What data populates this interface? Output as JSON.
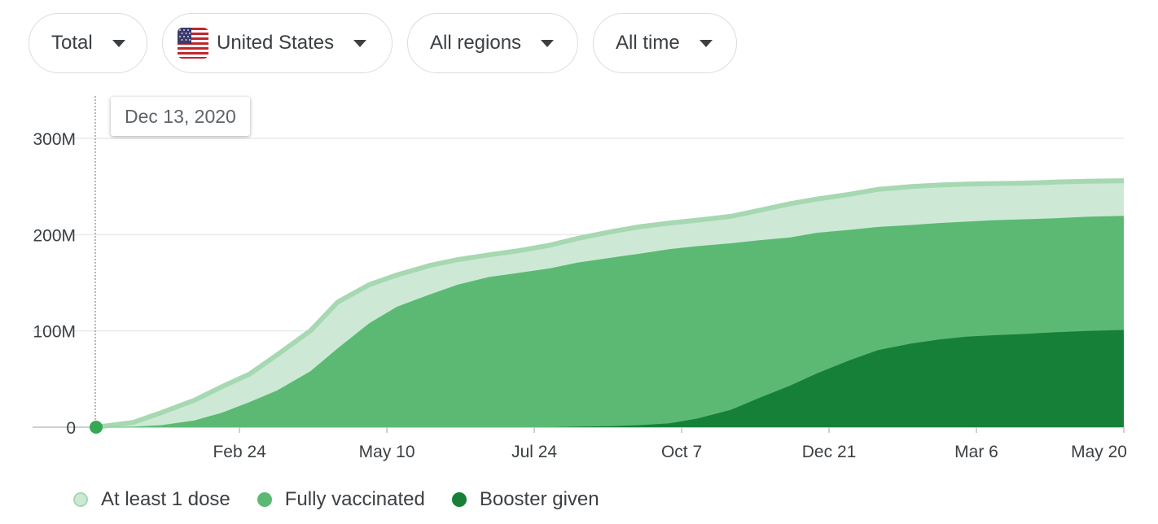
{
  "filters": {
    "metric": {
      "label": "Total"
    },
    "location": {
      "label": "United States",
      "flag": "us-flag-icon"
    },
    "region": {
      "label": "All regions"
    },
    "time": {
      "label": "All time"
    }
  },
  "tooltip": {
    "date": "Dec 13, 2020"
  },
  "colors": {
    "at_least_one_fill": "#cde9d6",
    "at_least_one_edge": "#a6d8b2",
    "fully_fill": "#5cb973",
    "booster_fill": "#168038",
    "marker": "#34a853",
    "grid": "#e8eaed"
  },
  "chart_data": {
    "type": "area",
    "title": "",
    "x_labels": [
      "Feb 24",
      "May 10",
      "Jul 24",
      "Oct 7",
      "Dec 21",
      "Mar 6",
      "May 20"
    ],
    "y_labels": [
      "0",
      "100M",
      "200M",
      "300M"
    ],
    "ylim": [
      0,
      300000000
    ],
    "grid": true,
    "legend_position": "bottom-left",
    "series": [
      {
        "name": "At least 1 dose",
        "points": [
          [
            "2020-12-13",
            0
          ],
          [
            "2021-01-01",
            5000000
          ],
          [
            "2021-01-15",
            15000000
          ],
          [
            "2021-02-01",
            28000000
          ],
          [
            "2021-02-15",
            42000000
          ],
          [
            "2021-03-01",
            55000000
          ],
          [
            "2021-03-15",
            75000000
          ],
          [
            "2021-04-01",
            100000000
          ],
          [
            "2021-04-15",
            130000000
          ],
          [
            "2021-05-01",
            148000000
          ],
          [
            "2021-05-15",
            158000000
          ],
          [
            "2021-06-01",
            168000000
          ],
          [
            "2021-06-15",
            174000000
          ],
          [
            "2021-07-01",
            179000000
          ],
          [
            "2021-07-15",
            183000000
          ],
          [
            "2021-08-01",
            189000000
          ],
          [
            "2021-08-15",
            196000000
          ],
          [
            "2021-09-01",
            203000000
          ],
          [
            "2021-09-15",
            208000000
          ],
          [
            "2021-10-01",
            212000000
          ],
          [
            "2021-10-15",
            215000000
          ],
          [
            "2021-11-01",
            219000000
          ],
          [
            "2021-11-15",
            225000000
          ],
          [
            "2021-12-01",
            232000000
          ],
          [
            "2021-12-15",
            237000000
          ],
          [
            "2022-01-01",
            242000000
          ],
          [
            "2022-01-15",
            247000000
          ],
          [
            "2022-02-01",
            250000000
          ],
          [
            "2022-02-15",
            251500000
          ],
          [
            "2022-03-01",
            252500000
          ],
          [
            "2022-03-15",
            253000000
          ],
          [
            "2022-04-01",
            253500000
          ],
          [
            "2022-04-15",
            254500000
          ],
          [
            "2022-05-01",
            255500000
          ],
          [
            "2022-05-20",
            256000000
          ]
        ]
      },
      {
        "name": "Fully vaccinated",
        "points": [
          [
            "2020-12-13",
            0
          ],
          [
            "2021-01-01",
            500000
          ],
          [
            "2021-01-15",
            2000000
          ],
          [
            "2021-02-01",
            7000000
          ],
          [
            "2021-02-15",
            15000000
          ],
          [
            "2021-03-01",
            26000000
          ],
          [
            "2021-03-15",
            38000000
          ],
          [
            "2021-04-01",
            58000000
          ],
          [
            "2021-04-15",
            82000000
          ],
          [
            "2021-05-01",
            108000000
          ],
          [
            "2021-05-15",
            125000000
          ],
          [
            "2021-06-01",
            138000000
          ],
          [
            "2021-06-15",
            148000000
          ],
          [
            "2021-07-01",
            156000000
          ],
          [
            "2021-07-15",
            160000000
          ],
          [
            "2021-08-01",
            165000000
          ],
          [
            "2021-08-15",
            171000000
          ],
          [
            "2021-09-01",
            176000000
          ],
          [
            "2021-09-15",
            180000000
          ],
          [
            "2021-10-01",
            185000000
          ],
          [
            "2021-10-15",
            188000000
          ],
          [
            "2021-11-01",
            191000000
          ],
          [
            "2021-11-15",
            194000000
          ],
          [
            "2021-12-01",
            197000000
          ],
          [
            "2021-12-15",
            202000000
          ],
          [
            "2022-01-01",
            205000000
          ],
          [
            "2022-01-15",
            208000000
          ],
          [
            "2022-02-01",
            210000000
          ],
          [
            "2022-02-15",
            212000000
          ],
          [
            "2022-03-01",
            213500000
          ],
          [
            "2022-03-15",
            215000000
          ],
          [
            "2022-04-01",
            216000000
          ],
          [
            "2022-04-15",
            217000000
          ],
          [
            "2022-05-01",
            218500000
          ],
          [
            "2022-05-20",
            219500000
          ]
        ]
      },
      {
        "name": "Booster given",
        "points": [
          [
            "2020-12-13",
            0
          ],
          [
            "2021-08-01",
            0
          ],
          [
            "2021-08-15",
            500000
          ],
          [
            "2021-09-01",
            1000000
          ],
          [
            "2021-09-15",
            2000000
          ],
          [
            "2021-10-01",
            4000000
          ],
          [
            "2021-10-15",
            9000000
          ],
          [
            "2021-11-01",
            18000000
          ],
          [
            "2021-11-15",
            30000000
          ],
          [
            "2021-12-01",
            43000000
          ],
          [
            "2021-12-15",
            56000000
          ],
          [
            "2022-01-01",
            70000000
          ],
          [
            "2022-01-15",
            80000000
          ],
          [
            "2022-02-01",
            87000000
          ],
          [
            "2022-02-15",
            91000000
          ],
          [
            "2022-03-01",
            94000000
          ],
          [
            "2022-03-15",
            95500000
          ],
          [
            "2022-04-01",
            97000000
          ],
          [
            "2022-04-15",
            98500000
          ],
          [
            "2022-05-01",
            100000000
          ],
          [
            "2022-05-20",
            101000000
          ]
        ]
      }
    ]
  }
}
